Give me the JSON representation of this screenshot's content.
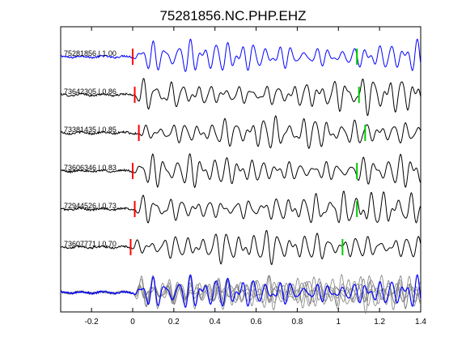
{
  "chart_data": {
    "type": "line",
    "title": "75281856.NC.PHP.EHZ",
    "xlabel": "",
    "ylabel": "",
    "xlim": [
      -0.35,
      1.4
    ],
    "xticks": [
      -0.2,
      0,
      0.2,
      0.4,
      0.6,
      0.8,
      1,
      1.2,
      1.4
    ],
    "xtick_labels": [
      "-0.2",
      "0",
      "0.2",
      "0.4",
      "0.6",
      "0.8",
      "1",
      "1.2",
      "1.4"
    ],
    "grid": false,
    "colors": {
      "reference": "#0000ff",
      "trace": "#000000",
      "stack": "#808080",
      "p_pick": "#ff0000",
      "s_pick": "#00cc00"
    },
    "series": [
      {
        "label": "75281856 | 1.00",
        "p_pick": 0.0,
        "s_pick": 1.09,
        "reference": true
      },
      {
        "label": "73642305 | 0.86",
        "p_pick": 0.01,
        "s_pick": 1.1
      },
      {
        "label": "73381435 | 0.85",
        "p_pick": 0.03,
        "s_pick": 1.13
      },
      {
        "label": "73606346 | 0.83",
        "p_pick": 0.0,
        "s_pick": 1.09
      },
      {
        "label": "72944526 | 0.73",
        "p_pick": 0.01,
        "s_pick": 1.09
      },
      {
        "label": "73607771 | 0.70",
        "p_pick": -0.01,
        "s_pick": 1.02
      }
    ],
    "stack": {
      "label": ""
    }
  }
}
